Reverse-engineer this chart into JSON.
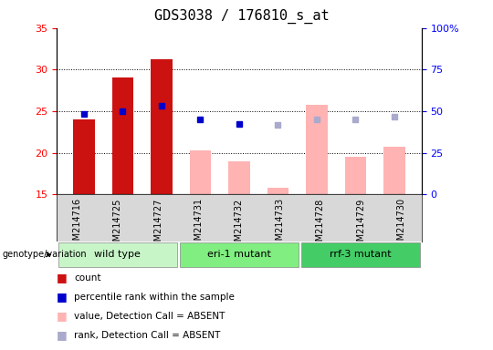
{
  "title": "GDS3038 / 176810_s_at",
  "samples": [
    "GSM214716",
    "GSM214725",
    "GSM214727",
    "GSM214731",
    "GSM214732",
    "GSM214733",
    "GSM214728",
    "GSM214729",
    "GSM214730"
  ],
  "groups": [
    {
      "label": "wild type",
      "indices": [
        0,
        1,
        2
      ],
      "color": "#c8f5c8"
    },
    {
      "label": "eri-1 mutant",
      "indices": [
        3,
        4,
        5
      ],
      "color": "#80ee80"
    },
    {
      "label": "rrf-3 mutant",
      "indices": [
        6,
        7,
        8
      ],
      "color": "#44cc66"
    }
  ],
  "bar_data": {
    "present_count": [
      24.0,
      29.0,
      31.2,
      null,
      null,
      null,
      null,
      null,
      null
    ],
    "absent_value": [
      null,
      null,
      null,
      20.3,
      19.0,
      15.8,
      25.8,
      19.5,
      20.7
    ],
    "present_rank": [
      24.7,
      25.0,
      25.7,
      24.0,
      23.5,
      null,
      null,
      null,
      null
    ],
    "absent_rank": [
      null,
      null,
      null,
      null,
      null,
      23.3,
      24.0,
      24.0,
      24.3
    ]
  },
  "ylim_left": [
    15,
    35
  ],
  "ylim_right": [
    0,
    100
  ],
  "yticks_left": [
    15,
    20,
    25,
    30,
    35
  ],
  "yticks_right": [
    0,
    25,
    50,
    75,
    100
  ],
  "ytick_labels_right": [
    "0",
    "25",
    "50",
    "75",
    "100%"
  ],
  "bar_color_present": "#cc1111",
  "bar_color_absent": "#ffb3b3",
  "dot_color_present_rank": "#0000cc",
  "dot_color_absent_rank": "#aaaacc",
  "title_fontsize": 11,
  "axis_tick_fontsize": 8,
  "sample_fontsize": 7,
  "group_fontsize": 8,
  "legend_fontsize": 7.5,
  "gridline_values": [
    20,
    25,
    30
  ],
  "legend_items": [
    {
      "color": "#cc1111",
      "label": "count"
    },
    {
      "color": "#0000cc",
      "label": "percentile rank within the sample"
    },
    {
      "color": "#ffb3b3",
      "label": "value, Detection Call = ABSENT"
    },
    {
      "color": "#aaaacc",
      "label": "rank, Detection Call = ABSENT"
    }
  ]
}
